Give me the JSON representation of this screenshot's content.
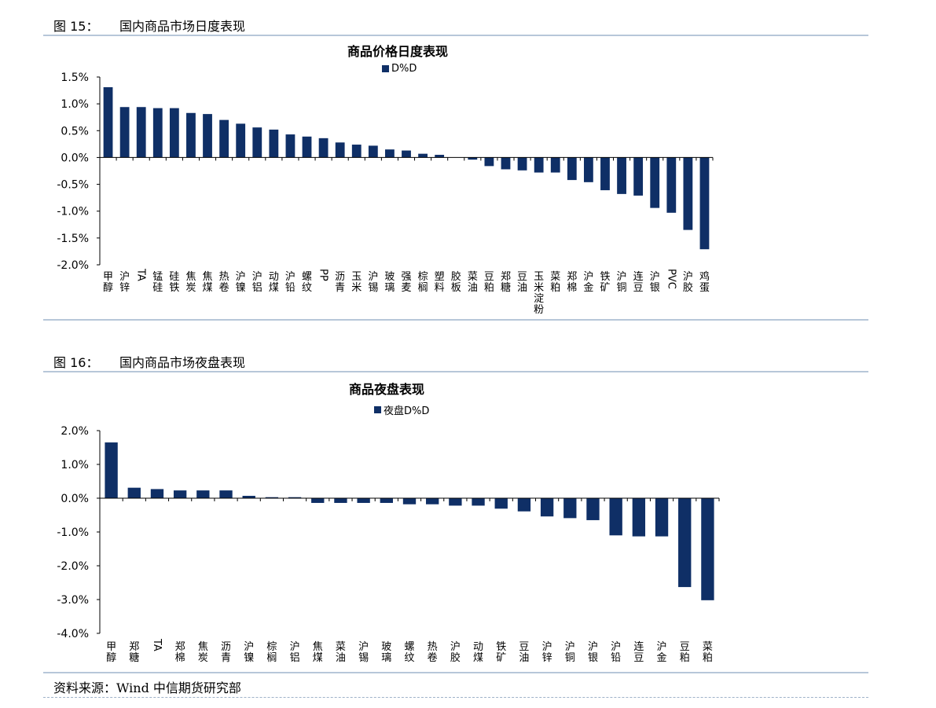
{
  "figures": [
    {
      "number": "图 15：",
      "caption": "国内商品市场日度表现"
    },
    {
      "number": "图 16：",
      "caption": "国内商品市场夜盘表现"
    }
  ],
  "source": "资料来源：Wind  中信期货研究部",
  "colors": {
    "bar": "#0f2f66",
    "rule": "#b7c7d9"
  },
  "chart_data": [
    {
      "type": "bar",
      "title": "商品价格日度表现",
      "legend": "D%D",
      "legend_position": "top",
      "ylim": [
        -2.0,
        1.5
      ],
      "yticks": [
        1.5,
        1.0,
        0.5,
        0.0,
        -0.5,
        -1.0,
        -1.5,
        -2.0
      ],
      "ytick_labels": [
        "1.5%",
        "1.0%",
        "0.5%",
        "0.0%",
        "-0.5%",
        "-1.0%",
        "-1.5%",
        "-2.0%"
      ],
      "categories": [
        "甲醇",
        "沪锌",
        "TA",
        "锰硅",
        "硅铁",
        "焦炭",
        "焦煤",
        "热卷",
        "沪镍",
        "沪铝",
        "动煤",
        "沪铅",
        "螺纹",
        "PP",
        "沥青",
        "玉米",
        "沪锡",
        "玻璃",
        "强麦",
        "棕榈",
        "塑料",
        "胶板",
        "菜油",
        "豆粕",
        "郑糖",
        "豆油",
        "玉米淀粉",
        "菜粕",
        "郑棉",
        "沪金",
        "铁矿",
        "沪铜",
        "连豆",
        "沪银",
        "PVC",
        "沪胶",
        "鸡蛋"
      ],
      "values": [
        1.31,
        0.94,
        0.94,
        0.92,
        0.92,
        0.83,
        0.81,
        0.7,
        0.63,
        0.56,
        0.52,
        0.43,
        0.39,
        0.36,
        0.28,
        0.24,
        0.22,
        0.15,
        0.13,
        0.07,
        0.05,
        0.0,
        -0.04,
        -0.16,
        -0.22,
        -0.24,
        -0.28,
        -0.28,
        -0.42,
        -0.46,
        -0.61,
        -0.68,
        -0.71,
        -0.94,
        -1.03,
        -1.35,
        -1.71
      ]
    },
    {
      "type": "bar",
      "title": "商品夜盘表现",
      "legend": "夜盘D%D",
      "legend_position": "top",
      "ylim": [
        -4.0,
        2.0
      ],
      "yticks": [
        2.0,
        1.0,
        0.0,
        -1.0,
        -2.0,
        -3.0,
        -4.0
      ],
      "ytick_labels": [
        "2.0%",
        "1.0%",
        "0.0%",
        "-1.0%",
        "-2.0%",
        "-3.0%",
        "-4.0%"
      ],
      "categories": [
        "甲醇",
        "郑糖",
        "TA",
        "郑棉",
        "焦炭",
        "沥青",
        "沪镍",
        "棕榈",
        "沪铝",
        "焦煤",
        "菜油",
        "沪锡",
        "玻璃",
        "螺纹",
        "热卷",
        "沪胶",
        "动煤",
        "铁矿",
        "豆油",
        "沪锌",
        "沪铜",
        "沪银",
        "沪铅",
        "连豆",
        "沪金",
        "豆粕",
        "菜粕"
      ],
      "values": [
        1.65,
        0.31,
        0.27,
        0.23,
        0.23,
        0.23,
        0.07,
        0.03,
        0.03,
        -0.14,
        -0.14,
        -0.14,
        -0.14,
        -0.18,
        -0.18,
        -0.22,
        -0.22,
        -0.31,
        -0.39,
        -0.54,
        -0.59,
        -0.65,
        -1.1,
        -1.13,
        -1.13,
        -2.63,
        -3.02
      ]
    }
  ]
}
